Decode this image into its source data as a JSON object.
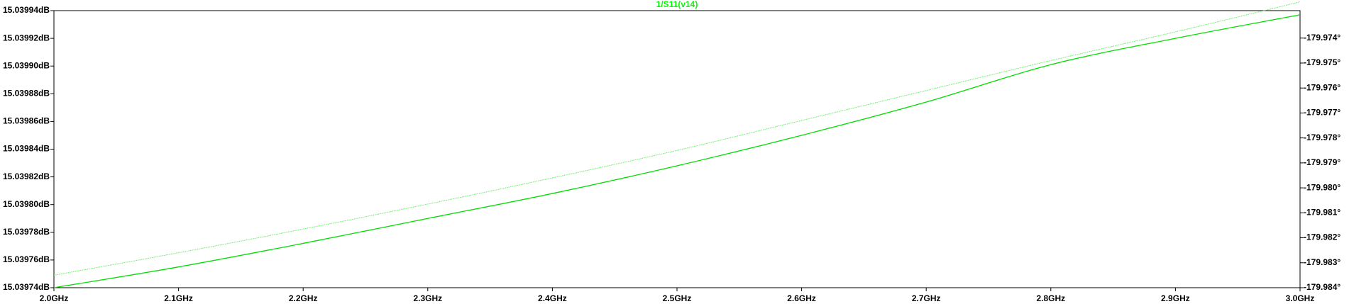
{
  "chart_data": {
    "type": "line",
    "title": "1/S11(v14)",
    "title_color": "#00ff00",
    "background": "#ffffff",
    "frame_color": "#000000",
    "grid": false,
    "x": {
      "range": [
        2.0,
        3.0
      ],
      "ticks": [
        2.0,
        2.1,
        2.2,
        2.3,
        2.4,
        2.5,
        2.6,
        2.7,
        2.8,
        2.9,
        3.0
      ],
      "tick_labels": [
        "2.0GHz",
        "2.1GHz",
        "2.2GHz",
        "2.3GHz",
        "2.4GHz",
        "2.5GHz",
        "2.6GHz",
        "2.7GHz",
        "2.8GHz",
        "2.9GHz",
        "3.0GHz"
      ]
    },
    "y_left": {
      "range": [
        15.03974,
        15.03994
      ],
      "ticks": [
        15.03994,
        15.03992,
        15.0399,
        15.03988,
        15.03986,
        15.03984,
        15.03982,
        15.0398,
        15.03978,
        15.03976,
        15.03974
      ],
      "tick_labels": [
        "15.03994dB",
        "15.03992dB",
        "15.03990dB",
        "15.03988dB",
        "15.03986dB",
        "15.03984dB",
        "15.03982dB",
        "15.03980dB",
        "15.03978dB",
        "15.03976dB",
        "15.03974dB"
      ]
    },
    "y_right": {
      "range": [
        -179.984,
        -179.9729
      ],
      "ticks": [
        -179.974,
        -179.975,
        -179.976,
        -179.977,
        -179.978,
        -179.979,
        -179.98,
        -179.981,
        -179.982,
        -179.983,
        -179.984
      ],
      "tick_labels": [
        "-179.974°",
        "-179.975°",
        "-179.976°",
        "-179.977°",
        "-179.978°",
        "-179.979°",
        "-179.980°",
        "-179.981°",
        "-179.982°",
        "-179.983°",
        "-179.984°"
      ]
    },
    "series": [
      {
        "axis": "left",
        "color": "#00dd00",
        "style": "solid",
        "x": [
          2.0,
          2.1,
          2.2,
          2.3,
          2.4,
          2.5,
          2.6,
          2.7,
          2.8,
          2.9,
          3.0
        ],
        "y": [
          15.03974,
          15.039755,
          15.039772,
          15.03979,
          15.039808,
          15.039828,
          15.03985,
          15.039874,
          15.039901,
          15.03992,
          15.039937
        ]
      },
      {
        "axis": "right",
        "color": "#66ee66",
        "style": "dotted",
        "x": [
          2.0,
          2.1,
          2.2,
          2.3,
          2.4,
          2.5,
          2.6,
          2.7,
          2.8,
          2.9,
          3.0
        ],
        "y": [
          -179.9835,
          -179.9826,
          -179.98165,
          -179.98065,
          -179.9796,
          -179.9785,
          -179.9773,
          -179.9761,
          -179.9749,
          -179.97375,
          -179.97255
        ]
      }
    ]
  }
}
